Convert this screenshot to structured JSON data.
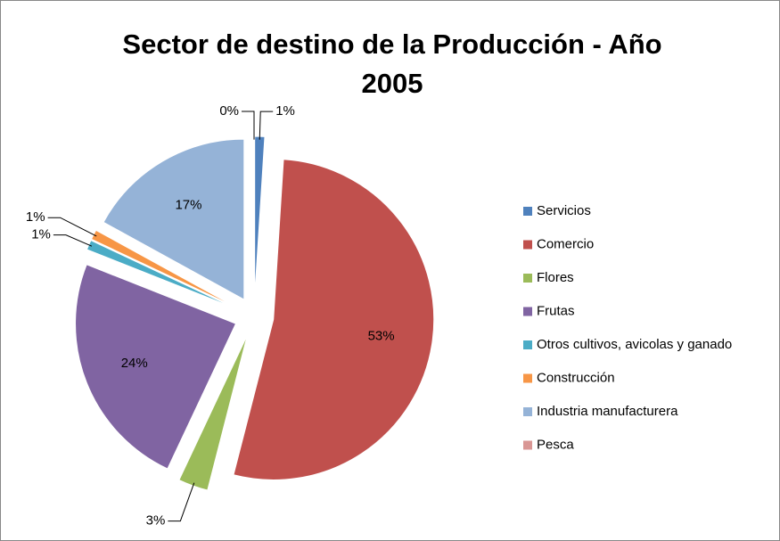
{
  "chart_data": {
    "type": "pie",
    "title": "Sector de destino de la Producción - Año 2005",
    "categories": [
      "Servicios",
      "Comercio",
      "Flores",
      "Frutas",
      "Otros cultivos, avicolas y ganado",
      "Construcción",
      "Industria manufacturera",
      "Pesca"
    ],
    "values": [
      1,
      53,
      3,
      24,
      1,
      1,
      17,
      0
    ],
    "value_labels": [
      "1%",
      "53%",
      "3%",
      "24%",
      "1%",
      "1%",
      "17%",
      "0%"
    ],
    "colors": [
      "#4f81bd",
      "#c0504d",
      "#9bbb59",
      "#8064a2",
      "#4bacc6",
      "#f79646",
      "#95b3d7",
      "#d99694"
    ],
    "legend": "right"
  }
}
